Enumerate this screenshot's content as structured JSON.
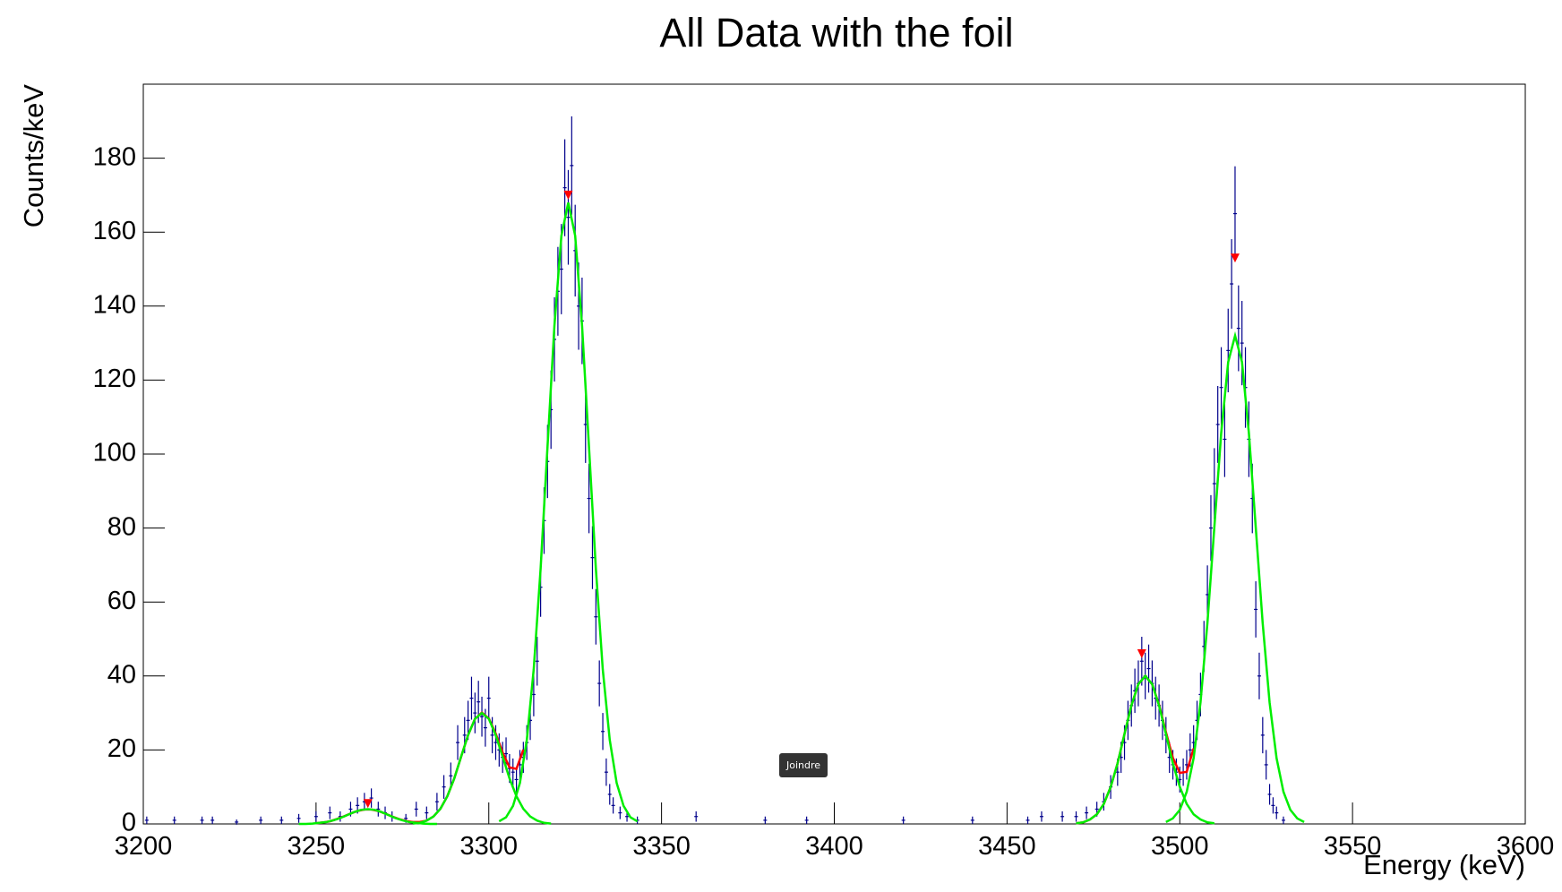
{
  "chart_data": {
    "type": "scatter",
    "title": "All Data with the foil",
    "x_label": "Energy (keV)",
    "y_label": "Counts/keV",
    "xlim": [
      3200,
      3600
    ],
    "xticks": [
      3200,
      3250,
      3300,
      3350,
      3400,
      3450,
      3500,
      3550,
      3600
    ],
    "ylim": [
      0,
      200
    ],
    "yticks": [
      0,
      20,
      40,
      60,
      80,
      100,
      120,
      140,
      160,
      180
    ],
    "series": [
      {
        "type": "errorbar",
        "color": "#00008b",
        "x": [
          3201,
          3209,
          3217,
          3220,
          3227,
          3234,
          3240,
          3245,
          3250,
          3254,
          3257,
          3260,
          3262,
          3264,
          3266,
          3268,
          3270,
          3272,
          3276,
          3279,
          3282,
          3285,
          3287,
          3289,
          3291,
          3293,
          3294,
          3295,
          3296,
          3297,
          3298,
          3299,
          3300,
          3301,
          3302,
          3303,
          3304,
          3305,
          3306,
          3307,
          3308,
          3309,
          3310,
          3311,
          3312,
          3313,
          3314,
          3315,
          3316,
          3317,
          3318,
          3319,
          3320,
          3321,
          3322,
          3323,
          3324,
          3325,
          3326,
          3327,
          3328,
          3329,
          3330,
          3331,
          3332,
          3333,
          3334,
          3335,
          3336,
          3338,
          3340,
          3343,
          3360,
          3380,
          3392,
          3420,
          3440,
          3456,
          3460,
          3466,
          3470,
          3473,
          3476,
          3478,
          3480,
          3482,
          3483,
          3484,
          3485,
          3486,
          3487,
          3488,
          3489,
          3490,
          3491,
          3492,
          3493,
          3494,
          3495,
          3496,
          3497,
          3498,
          3499,
          3500,
          3501,
          3502,
          3503,
          3504,
          3505,
          3506,
          3507,
          3508,
          3509,
          3510,
          3511,
          3512,
          3513,
          3514,
          3515,
          3516,
          3517,
          3518,
          3519,
          3520,
          3521,
          3522,
          3523,
          3524,
          3525,
          3526,
          3527,
          3528,
          3530
        ],
        "values": [
          1,
          1,
          1,
          1,
          0.5,
          1,
          1,
          1.5,
          2,
          3,
          2,
          4,
          5,
          6,
          7,
          4,
          3,
          2,
          1.5,
          4,
          3,
          6,
          10,
          13,
          22,
          24,
          28,
          34,
          30,
          33,
          29,
          26,
          34,
          24,
          22,
          20,
          18,
          19,
          15,
          14,
          12,
          16,
          18,
          22,
          28,
          35,
          44,
          64,
          82,
          98,
          112,
          131,
          144,
          150,
          172,
          164,
          178,
          155,
          140,
          136,
          108,
          88,
          72,
          56,
          38,
          25,
          14,
          8,
          5,
          3,
          2,
          1,
          2,
          1,
          1,
          1,
          1,
          1,
          2,
          2,
          2,
          3,
          4,
          6,
          10,
          14,
          18,
          22,
          28,
          32,
          36,
          38,
          44,
          40,
          42,
          38,
          34,
          32,
          28,
          24,
          18,
          16,
          14,
          12,
          14,
          16,
          20,
          22,
          28,
          35,
          48,
          62,
          80,
          92,
          108,
          118,
          104,
          128,
          146,
          165,
          134,
          130,
          118,
          104,
          88,
          58,
          40,
          24,
          16,
          8,
          5,
          3,
          1
        ],
        "errors": [
          1,
          1,
          1,
          1,
          0.7,
          1,
          1,
          1.2,
          1.4,
          1.7,
          1.4,
          2,
          2.2,
          2.4,
          2.6,
          2,
          1.7,
          1.4,
          1.2,
          2,
          1.7,
          2.4,
          3.2,
          3.6,
          4.7,
          4.9,
          5.3,
          5.8,
          5.5,
          5.7,
          5.4,
          5.1,
          5.8,
          4.9,
          4.7,
          4.5,
          4.2,
          4.4,
          3.9,
          3.7,
          3.5,
          4,
          4.2,
          4.7,
          5.3,
          5.9,
          6.6,
          8,
          9,
          9.9,
          10.6,
          11.4,
          12,
          12.2,
          13.1,
          12.8,
          13.3,
          12.4,
          11.8,
          11.7,
          10.4,
          9.4,
          8.5,
          7.5,
          6.2,
          5,
          3.7,
          2.8,
          2.2,
          1.7,
          1.4,
          1,
          1.4,
          1,
          1,
          1,
          1,
          1,
          1.4,
          1.4,
          1.4,
          1.7,
          2,
          2.4,
          3.2,
          3.7,
          4.2,
          4.7,
          5.3,
          5.7,
          6,
          6.2,
          6.6,
          6.3,
          6.5,
          6.2,
          5.8,
          5.7,
          5.3,
          4.9,
          4.2,
          4,
          3.7,
          3.5,
          3.7,
          4,
          4.5,
          4.7,
          5.3,
          5.9,
          6.9,
          7.9,
          8.9,
          9.6,
          10.4,
          10.9,
          10.2,
          11.3,
          12.1,
          12.8,
          11.6,
          11.4,
          10.9,
          10.2,
          9.4,
          7.6,
          6.3,
          4.9,
          4,
          2.8,
          2.2,
          1.7,
          1
        ]
      },
      {
        "type": "line",
        "color": "#ff0000",
        "x": [
          3250,
          3252,
          3254,
          3256,
          3258,
          3260,
          3262,
          3264,
          3266,
          3268,
          3270,
          3272,
          3274,
          3276,
          3278,
          3280,
          3282,
          3284,
          3286,
          3288,
          3290,
          3292,
          3294,
          3296,
          3298,
          3300,
          3302,
          3304,
          3306,
          3308,
          3310
        ],
        "values": [
          0.2,
          0.4,
          0.7,
          1.3,
          2,
          2.8,
          3.5,
          3.9,
          3.9,
          3.5,
          2.8,
          2,
          1.3,
          0.8,
          0.5,
          0.5,
          0.9,
          2,
          4.1,
          7.5,
          12.3,
          18.2,
          24,
          28.4,
          30.1,
          28.5,
          24.4,
          19.3,
          15.3,
          14.9,
          20.1
        ]
      },
      {
        "type": "line",
        "color": "#ff0000",
        "x": [
          3470,
          3472,
          3474,
          3476,
          3478,
          3480,
          3482,
          3484,
          3486,
          3488,
          3490,
          3492,
          3494,
          3496,
          3498,
          3500,
          3502,
          3504
        ],
        "values": [
          0.2,
          0.4,
          1.2,
          2.6,
          5.4,
          10,
          16.4,
          24.3,
          32,
          37.8,
          40,
          37.8,
          32.2,
          24.8,
          17.9,
          13.8,
          14.1,
          20.4
        ]
      },
      {
        "type": "line",
        "color": "#00ee00",
        "x": [
          3245,
          3247,
          3249,
          3251,
          3253,
          3255,
          3257,
          3259,
          3261,
          3263,
          3265,
          3267,
          3269,
          3271,
          3273,
          3275,
          3277,
          3279,
          3281,
          3283,
          3285
        ],
        "values": [
          0,
          0,
          0.1,
          0.3,
          0.5,
          1,
          1.6,
          2.4,
          3.2,
          3.8,
          4,
          3.8,
          3.2,
          2.4,
          1.6,
          1,
          0.5,
          0.3,
          0.1,
          0,
          0
        ]
      },
      {
        "type": "line",
        "color": "#00ee00",
        "x": [
          3278,
          3280,
          3282,
          3284,
          3286,
          3288,
          3290,
          3292,
          3294,
          3296,
          3298,
          3300,
          3302,
          3304,
          3306,
          3308,
          3310,
          3312,
          3314,
          3316,
          3318
        ],
        "values": [
          0.1,
          0.3,
          0.9,
          2,
          4.1,
          7.5,
          12.3,
          18.2,
          24,
          28.4,
          30,
          28.4,
          24,
          18.2,
          12.3,
          7.5,
          4.1,
          2,
          0.9,
          0.3,
          0.1
        ]
      },
      {
        "type": "line",
        "color": "#00ee00",
        "x": [
          3303,
          3305,
          3307,
          3309,
          3311,
          3313,
          3315,
          3317,
          3319,
          3321,
          3323,
          3325,
          3327,
          3329,
          3331,
          3333,
          3335,
          3337,
          3339,
          3341,
          3343
        ],
        "values": [
          0.7,
          1.8,
          4.9,
          11.1,
          22.7,
          41.8,
          69,
          102,
          134.6,
          159,
          168,
          159,
          134.6,
          102,
          69,
          41.8,
          22.7,
          11.1,
          4.9,
          1.8,
          0.7
        ]
      },
      {
        "type": "line",
        "color": "#00ee00",
        "x": [
          3470,
          3472,
          3474,
          3476,
          3478,
          3480,
          3482,
          3484,
          3486,
          3488,
          3490,
          3492,
          3494,
          3496,
          3498,
          3500,
          3502,
          3504,
          3506,
          3508,
          3510
        ],
        "values": [
          0.2,
          0.4,
          1.2,
          2.6,
          5.4,
          10,
          16.4,
          24.3,
          32,
          37.8,
          40,
          37.8,
          32,
          24.3,
          16.4,
          10,
          5.4,
          2.6,
          1.2,
          0.4,
          0.2
        ]
      },
      {
        "type": "line",
        "color": "#00ee00",
        "x": [
          3496,
          3498,
          3500,
          3502,
          3504,
          3506,
          3508,
          3510,
          3512,
          3514,
          3516,
          3518,
          3520,
          3522,
          3524,
          3526,
          3528,
          3530,
          3532,
          3534,
          3536
        ],
        "values": [
          0.5,
          1.5,
          3.8,
          8.7,
          17.8,
          32.9,
          54.3,
          80.1,
          105.7,
          124.9,
          132,
          124.9,
          105.7,
          80.1,
          54.3,
          32.9,
          17.8,
          8.7,
          3.8,
          1.5,
          0.5
        ]
      },
      {
        "type": "marker",
        "color": "#ff0000",
        "x": [
          3265,
          3323,
          3489,
          3516
        ],
        "values": [
          5.5,
          170,
          46,
          153
        ]
      }
    ]
  },
  "overlay_button": "Joindre"
}
